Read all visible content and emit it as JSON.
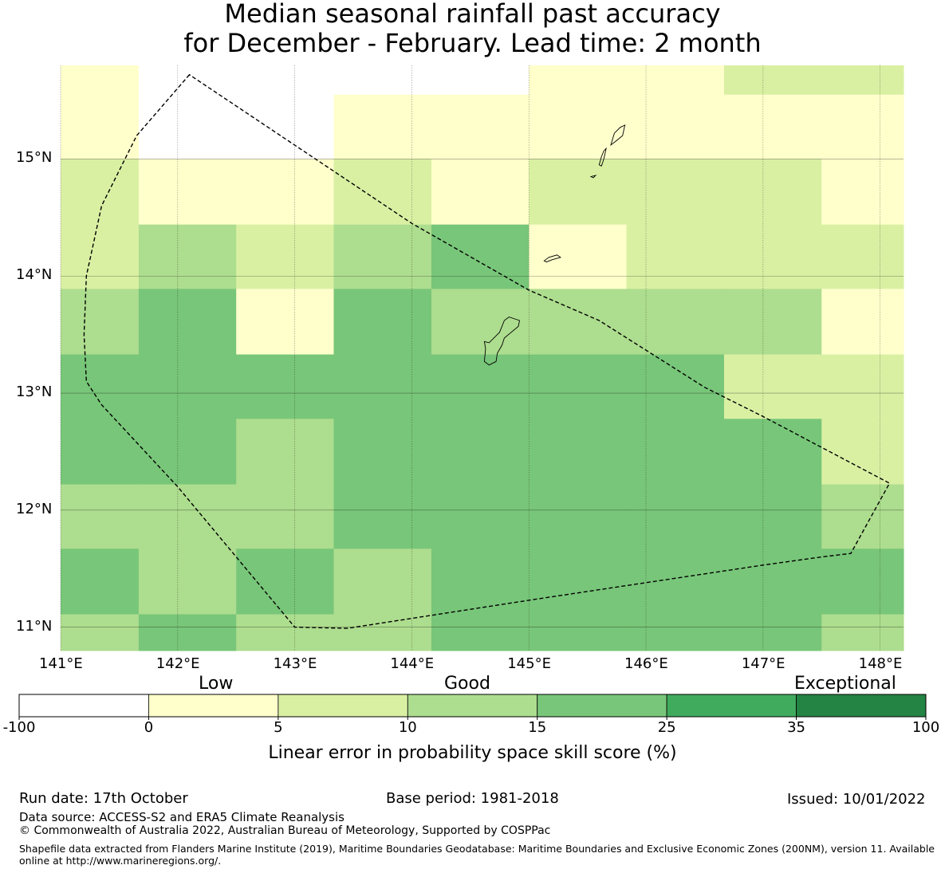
{
  "title_line1": "Median seasonal rainfall past accuracy",
  "title_line2": "for December - February. Lead time: 2 month",
  "map": {
    "lon_range": [
      141.0,
      148.2
    ],
    "lat_range": [
      10.8,
      15.8
    ],
    "lon_ticks": [
      {
        "value": 141,
        "label": "141°E"
      },
      {
        "value": 142,
        "label": "142°E"
      },
      {
        "value": 143,
        "label": "143°E"
      },
      {
        "value": 144,
        "label": "144°E"
      },
      {
        "value": 145,
        "label": "145°E"
      },
      {
        "value": 146,
        "label": "146°E"
      },
      {
        "value": 147,
        "label": "147°E"
      },
      {
        "value": 148,
        "label": "148°E"
      }
    ],
    "lat_ticks": [
      {
        "value": 15,
        "label": "15°N"
      },
      {
        "value": 14,
        "label": "14°N"
      },
      {
        "value": 13,
        "label": "13°N"
      },
      {
        "value": 12,
        "label": "12°N"
      },
      {
        "value": 11,
        "label": "11°N"
      }
    ],
    "grid_cell_edges_lon": [
      141.0,
      141.667,
      142.5,
      143.333,
      144.167,
      145.0,
      145.833,
      146.667,
      147.5,
      148.2
    ],
    "grid_cell_edges_lat": [
      15.8,
      15.55,
      15.0,
      14.44,
      13.89,
      13.33,
      12.78,
      12.22,
      11.67,
      11.11,
      10.8
    ],
    "skill_class_grid": [
      [
        1,
        0,
        0,
        0,
        0,
        1,
        1,
        2,
        2
      ],
      [
        1,
        0,
        0,
        1,
        1,
        1,
        1,
        1,
        1
      ],
      [
        2,
        1,
        1,
        2,
        1,
        2,
        2,
        2,
        1
      ],
      [
        2,
        3,
        2,
        3,
        4,
        1,
        2,
        2,
        2
      ],
      [
        3,
        4,
        1,
        4,
        3,
        3,
        3,
        3,
        1
      ],
      [
        4,
        4,
        4,
        4,
        4,
        4,
        4,
        2,
        2
      ],
      [
        4,
        4,
        3,
        4,
        4,
        4,
        4,
        4,
        2
      ],
      [
        3,
        3,
        3,
        4,
        4,
        4,
        4,
        4,
        3
      ],
      [
        4,
        3,
        4,
        3,
        4,
        4,
        4,
        4,
        4
      ],
      [
        3,
        4,
        3,
        3,
        4,
        4,
        4,
        4,
        3
      ]
    ],
    "eez_boundary": [
      [
        142.1,
        15.72
      ],
      [
        141.65,
        15.2
      ],
      [
        141.35,
        14.6
      ],
      [
        141.22,
        14.0
      ],
      [
        141.2,
        13.5
      ],
      [
        141.22,
        13.1
      ],
      [
        141.35,
        12.9
      ],
      [
        142.0,
        12.2
      ],
      [
        143.0,
        11.0
      ],
      [
        143.45,
        10.99
      ],
      [
        145.0,
        11.23
      ],
      [
        147.0,
        11.53
      ],
      [
        147.5,
        11.6
      ],
      [
        147.75,
        11.63
      ],
      [
        148.08,
        12.23
      ],
      [
        147.0,
        12.8
      ],
      [
        146.5,
        13.05
      ],
      [
        145.6,
        13.62
      ],
      [
        145.0,
        13.88
      ],
      [
        144.0,
        14.45
      ],
      [
        142.1,
        15.72
      ]
    ],
    "islands": [
      {
        "name": "Guam",
        "points": [
          [
            144.62,
            13.44
          ],
          [
            144.66,
            13.43
          ],
          [
            144.75,
            13.52
          ],
          [
            144.79,
            13.62
          ],
          [
            144.83,
            13.65
          ],
          [
            144.92,
            13.62
          ],
          [
            144.91,
            13.57
          ],
          [
            144.79,
            13.47
          ],
          [
            144.77,
            13.41
          ],
          [
            144.73,
            13.34
          ],
          [
            144.72,
            13.27
          ],
          [
            144.66,
            13.24
          ],
          [
            144.62,
            13.27
          ],
          [
            144.63,
            13.38
          ]
        ]
      },
      {
        "name": "Rota",
        "points": [
          [
            145.13,
            14.13
          ],
          [
            145.17,
            14.16
          ],
          [
            145.24,
            14.18
          ],
          [
            145.27,
            14.16
          ],
          [
            145.2,
            14.14
          ],
          [
            145.15,
            14.12
          ]
        ]
      },
      {
        "name": "Tinian",
        "points": [
          [
            145.6,
            14.95
          ],
          [
            145.62,
            15.02
          ],
          [
            145.64,
            15.07
          ],
          [
            145.66,
            15.09
          ],
          [
            145.64,
            15.0
          ],
          [
            145.62,
            14.94
          ]
        ]
      },
      {
        "name": "Saipan",
        "points": [
          [
            145.7,
            15.12
          ],
          [
            145.73,
            15.22
          ],
          [
            145.78,
            15.27
          ],
          [
            145.82,
            15.29
          ],
          [
            145.8,
            15.2
          ],
          [
            145.74,
            15.15
          ]
        ]
      },
      {
        "name": "Aguijan",
        "points": [
          [
            145.53,
            14.85
          ],
          [
            145.57,
            14.86
          ],
          [
            145.55,
            14.84
          ]
        ]
      }
    ]
  },
  "colorbar": {
    "category_labels": {
      "low": "Low",
      "good": "Good",
      "exceptional": "Exceptional"
    },
    "bins": [
      {
        "from": -100,
        "to": 0,
        "color": "#ffffff"
      },
      {
        "from": 0,
        "to": 5,
        "color": "#ffffcc"
      },
      {
        "from": 5,
        "to": 10,
        "color": "#d9f0a3"
      },
      {
        "from": 10,
        "to": 15,
        "color": "#addd8e"
      },
      {
        "from": 15,
        "to": 25,
        "color": "#78c679"
      },
      {
        "from": 25,
        "to": 35,
        "color": "#41ab5d"
      },
      {
        "from": 35,
        "to": 100,
        "color": "#238443"
      }
    ],
    "tick_labels": [
      "-100",
      "0",
      "5",
      "10",
      "15",
      "25",
      "35",
      "100"
    ],
    "axis_label": "Linear error in probability space skill score (%)"
  },
  "footer": {
    "run_date": "Run date: 17th October",
    "base_period": "Base period: 1981-2018",
    "issued": "Issued: 10/01/2022",
    "data_source": "Data source: ACCESS-S2 and ERA5 Climate Reanalysis",
    "copyright": "© Commonwealth of Australia 2022, Australian Bureau of Meteorology, Supported by COSPPac",
    "shapefile_note": "Shapefile data extracted from Flanders Marine Institute (2019), Maritime Boundaries Geodatabase: Maritime Boundaries and Exclusive Economic Zones (200NM), version 11. Available online at http://www.marineregions.org/."
  }
}
